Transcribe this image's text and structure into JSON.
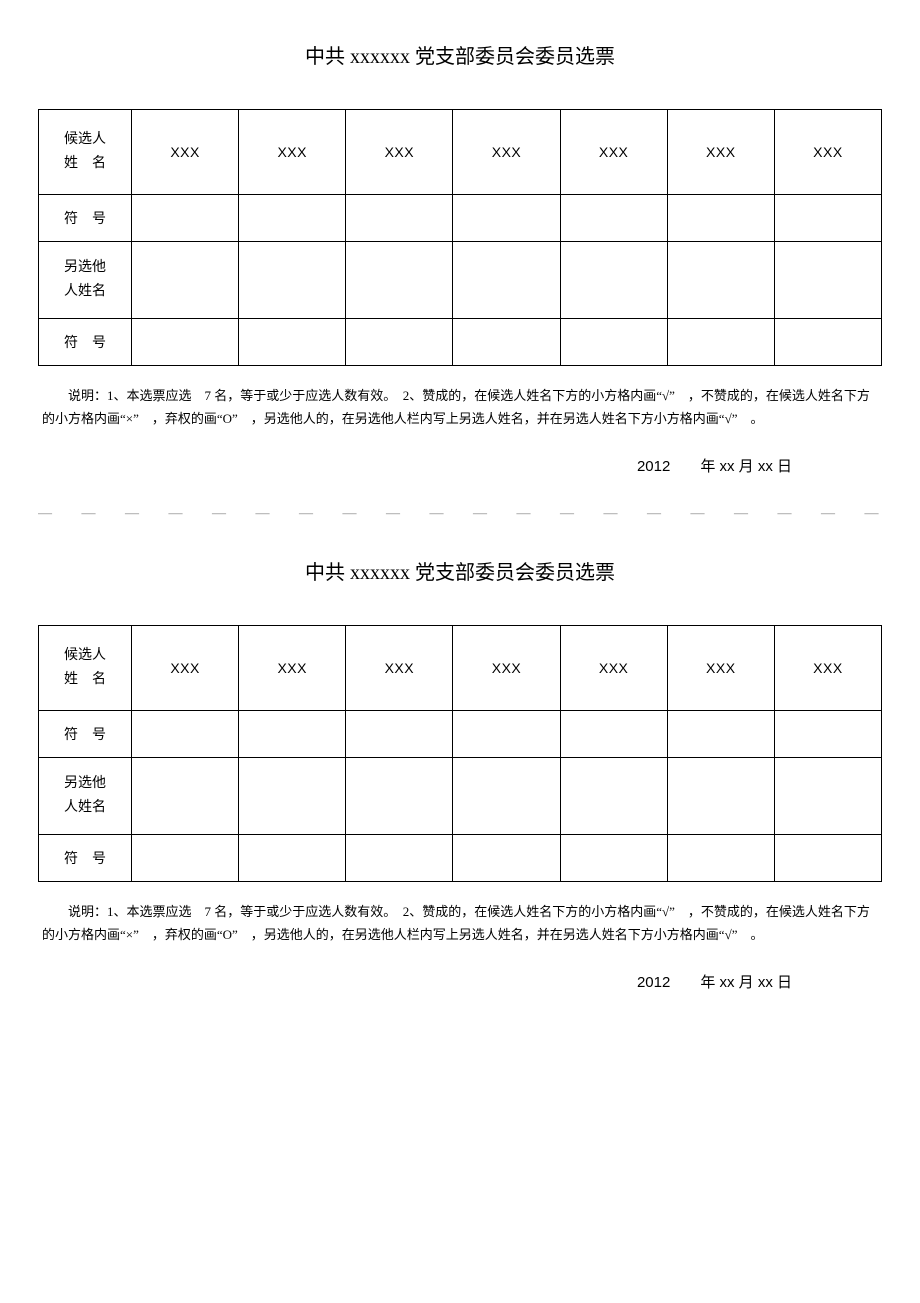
{
  "ballot": {
    "title": "中共 xxxxxx  党支部委员会委员选票",
    "row_labels": {
      "candidate_name": "候选人\n姓　名",
      "symbol": "符　号",
      "other_name": "另选他\n人姓名",
      "symbol2": "符　号"
    },
    "candidates": [
      "XXX",
      "XXX",
      "XXX",
      "XXX",
      "XXX",
      "XXX",
      "XXX"
    ],
    "note": "说明：1、本选票应选　7 名，等于或少于应选人数有效。　2、赞成的，在候选人姓名下方的小方格内画“√”　，不赞成的，在候选人姓名下方的小方格内画“×”　，弃权的画“O”　，另选他人的，在另选他人栏内写上另选人姓名，并在另选人姓名下方小方格内画“√”　。",
    "date": "2012　　年 xx 月 xx 日"
  },
  "divider": "— — — — — — — — — — — — — — — — — — — — — — — — — — — — — — — — — — —"
}
